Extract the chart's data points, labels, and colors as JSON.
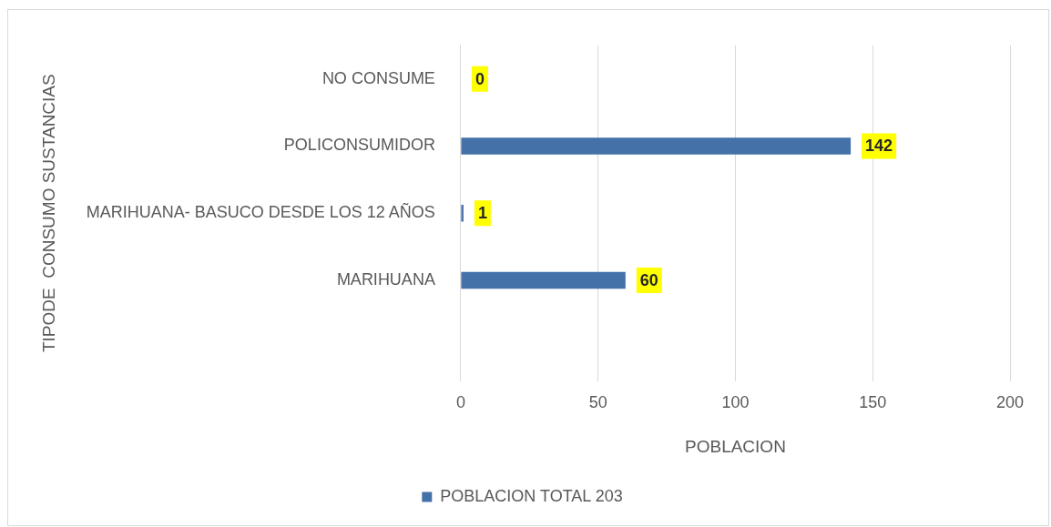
{
  "chart_data": {
    "type": "bar",
    "orientation": "horizontal",
    "xlabel": "POBLACION",
    "ylabel": "TIPODE  CONSUMO SUSTANCIAS",
    "categories": [
      "NO CONSUME",
      "POLICONSUMIDOR",
      "MARIHUANA- BASUCO DESDE LOS 12 AÑOS",
      "MARIHUANA",
      null
    ],
    "series": [
      {
        "name": "POBLACION TOTAL 203",
        "color": "#4472a8",
        "values": [
          0,
          142,
          1,
          60,
          null
        ]
      }
    ],
    "xlim": [
      0,
      200
    ],
    "xticks": [
      0,
      50,
      100,
      150,
      200
    ],
    "grid": "x",
    "legend": "bottom",
    "data_labels": true
  }
}
